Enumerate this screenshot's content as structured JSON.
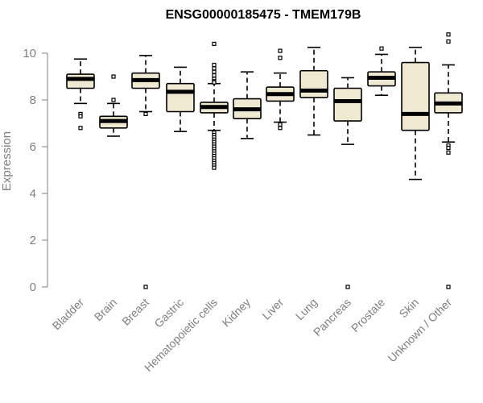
{
  "chart_data": {
    "type": "boxplot",
    "title": "ENSG00000185475 - TMEM179B",
    "xlabel": "",
    "ylabel": "Expression",
    "ylim": [
      0,
      10.8
    ],
    "yticks": [
      0,
      2,
      4,
      6,
      8,
      10
    ],
    "grid": false,
    "box_fill": "#efe9d2",
    "box_stroke": "#000000",
    "categories": [
      "Bladder",
      "Brain",
      "Breast",
      "Gastric",
      "Hematopoietic cells",
      "Kidney",
      "Liver",
      "Lung",
      "Pancreas",
      "Prostate",
      "Skin",
      "Unknown / Other"
    ],
    "boxes": [
      {
        "q1": 8.5,
        "median": 8.9,
        "q3": 9.1,
        "whisker_low": 7.85,
        "whisker_high": 9.75,
        "outliers": [
          7.4,
          7.3,
          6.8
        ]
      },
      {
        "q1": 6.8,
        "median": 7.1,
        "q3": 7.3,
        "whisker_low": 6.45,
        "whisker_high": 7.85,
        "outliers": [
          8.0,
          9.0
        ]
      },
      {
        "q1": 8.5,
        "median": 8.85,
        "q3": 9.15,
        "whisker_low": 7.5,
        "whisker_high": 9.9,
        "outliers": [
          7.4,
          0
        ]
      },
      {
        "q1": 7.5,
        "median": 8.35,
        "q3": 8.7,
        "whisker_low": 6.65,
        "whisker_high": 9.4,
        "outliers": []
      },
      {
        "q1": 7.45,
        "median": 7.7,
        "q3": 7.9,
        "whisker_low": 6.7,
        "whisker_high": 8.7,
        "outliers": [
          10.4,
          9.5,
          9.35,
          9.2,
          9.05,
          8.9,
          8.8,
          8.75,
          6.6,
          6.5,
          6.4,
          6.3,
          6.2,
          6.1,
          6.0,
          5.9,
          5.8,
          5.7,
          5.6,
          5.5,
          5.4,
          5.3,
          5.2,
          5.1
        ]
      },
      {
        "q1": 7.2,
        "median": 7.6,
        "q3": 8.05,
        "whisker_low": 6.35,
        "whisker_high": 9.2,
        "outliers": []
      },
      {
        "q1": 7.95,
        "median": 8.25,
        "q3": 8.55,
        "whisker_low": 7.05,
        "whisker_high": 9.15,
        "outliers": [
          10.1,
          9.8,
          6.95,
          6.8
        ]
      },
      {
        "q1": 8.1,
        "median": 8.4,
        "q3": 9.25,
        "whisker_low": 6.5,
        "whisker_high": 10.25,
        "outliers": []
      },
      {
        "q1": 7.1,
        "median": 7.95,
        "q3": 8.5,
        "whisker_low": 6.1,
        "whisker_high": 8.95,
        "outliers": [
          0
        ]
      },
      {
        "q1": 8.6,
        "median": 8.95,
        "q3": 9.2,
        "whisker_low": 8.2,
        "whisker_high": 9.95,
        "outliers": [
          10.2
        ]
      },
      {
        "q1": 6.7,
        "median": 7.4,
        "q3": 9.6,
        "whisker_low": 4.6,
        "whisker_high": 10.25,
        "outliers": []
      },
      {
        "q1": 7.45,
        "median": 7.85,
        "q3": 8.3,
        "whisker_low": 6.2,
        "whisker_high": 9.5,
        "outliers": [
          10.8,
          10.5,
          6.05,
          5.95,
          5.75,
          0
        ]
      }
    ]
  }
}
